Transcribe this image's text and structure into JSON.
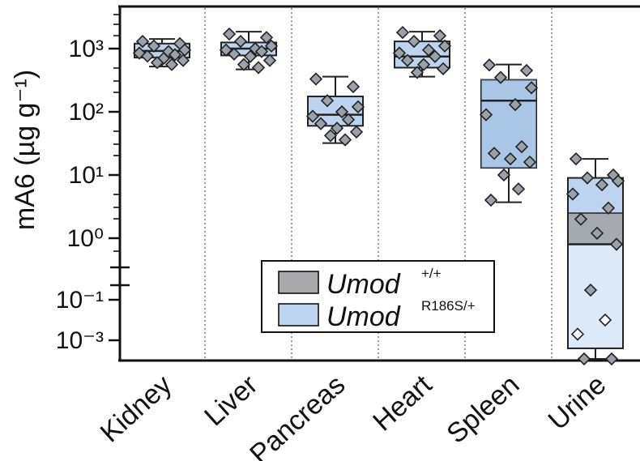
{
  "chart_data": {
    "type": "box",
    "ylabel": "mA6 (µg g⁻¹)",
    "yscale": "log (broken axis)",
    "y_ticks_upper": [
      {
        "value": 1000,
        "label": "10³"
      },
      {
        "value": 100,
        "label": "10²"
      },
      {
        "value": 10,
        "label": "10¹"
      },
      {
        "value": 1,
        "label": "10⁰"
      }
    ],
    "y_ticks_lower": [
      {
        "value": 0.1,
        "label": "10⁻¹"
      },
      {
        "value": 0.001,
        "label": "10⁻³"
      }
    ],
    "categories": [
      "Kidney",
      "Liver",
      "Pancreas",
      "Heart",
      "Spleen",
      "Urine"
    ],
    "legend": {
      "position": "center-bottom",
      "entries": [
        {
          "label": "Umod",
          "superscript": "+/+",
          "color": "#a9a9ab"
        },
        {
          "label": "Umod",
          "superscript": "R186S/+",
          "color": "#bcd4ef"
        }
      ]
    },
    "colors": {
      "box_light": "#bcd4ef",
      "box_mid": "#9ab9de",
      "box_dark": "#7fa2cc",
      "box_grey": "#a5a9b0",
      "marker": "#9aa1ab"
    },
    "series": [
      {
        "category": "Kidney",
        "box": {
          "q1": 720,
          "median": 920,
          "q3": 1200
        },
        "whisker": {
          "low": 520,
          "high": 1420
        },
        "points": [
          1300,
          1200,
          1100,
          950,
          900,
          850,
          800,
          760,
          700,
          650,
          600,
          560
        ]
      },
      {
        "category": "Liver",
        "box": {
          "q1": 780,
          "median": 1000,
          "q3": 1250
        },
        "whisker": {
          "low": 470,
          "high": 1850
        },
        "points": [
          1700,
          1500,
          1300,
          1100,
          1000,
          950,
          900,
          820,
          750,
          650,
          560,
          500
        ]
      },
      {
        "category": "Pancreas",
        "box": {
          "q1": 60,
          "median": 90,
          "q3": 175
        },
        "whisker": {
          "low": 32,
          "high": 360
        },
        "points": [
          330,
          250,
          150,
          120,
          100,
          85,
          75,
          65,
          55,
          48,
          42,
          36
        ]
      },
      {
        "category": "Heart",
        "box": {
          "q1": 500,
          "median": 750,
          "q3": 1300
        },
        "whisker": {
          "low": 360,
          "high": 1850
        },
        "points": [
          1800,
          1600,
          1300,
          1100,
          950,
          850,
          750,
          650,
          560,
          480,
          420
        ]
      },
      {
        "category": "Spleen",
        "box": {
          "q1": 13,
          "median": 150,
          "q3": 320
        },
        "whisker": {
          "low": 3.7,
          "high": 560
        },
        "points": [
          550,
          450,
          350,
          240,
          130,
          90,
          28,
          22,
          18,
          16,
          10,
          6,
          4
        ]
      },
      {
        "category": "Urine",
        "box": {
          "q1": 0.0004,
          "median": 0.8,
          "q3": 9
        },
        "box_split": 2.5,
        "whisker": {
          "low": 2e-05,
          "high": 18
        },
        "points": [
          18,
          10,
          9,
          8,
          7,
          5,
          3,
          2,
          1.2,
          0.8,
          0.3,
          0.01,
          0.002,
          3e-05,
          2e-05
        ]
      }
    ]
  }
}
